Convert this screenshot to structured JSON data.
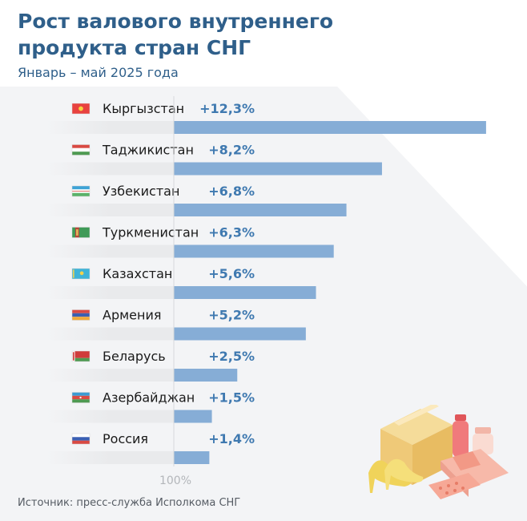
{
  "header": {
    "title": "Рост валового внутреннего продукта стран СНГ",
    "subtitle": "Январь – май 2025 года"
  },
  "footer": {
    "source": "Источник: пресс-служба Исполкома СНГ"
  },
  "colors": {
    "bar": "#86add6",
    "track": "#e9eaec",
    "value_text": "#3f79b0",
    "title": "#2f5f8a"
  },
  "chart_data": {
    "type": "bar",
    "orientation": "horizontal",
    "unit": "%",
    "reference_label": "100%",
    "categories": [
      "Кыргызстан",
      "Таджикистан",
      "Узбекистан",
      "Туркменистан",
      "Казахстан",
      "Армения",
      "Беларусь",
      "Азербайджан",
      "Россия"
    ],
    "values": [
      12.3,
      8.2,
      6.8,
      6.3,
      5.6,
      5.2,
      2.5,
      1.5,
      1.4
    ],
    "value_labels": [
      "+12,3%",
      "+8,2%",
      "+6,8%",
      "+6,3%",
      "+5,6%",
      "+5,2%",
      "+2,5%",
      "+1,5%",
      "+1,4%"
    ],
    "flag_icons": [
      "kyrgyzstan-flag-icon",
      "tajikistan-flag-icon",
      "uzbekistan-flag-icon",
      "turkmenistan-flag-icon",
      "kazakhstan-flag-icon",
      "armenia-flag-icon",
      "belarus-flag-icon",
      "azerbaijan-flag-icon",
      "russia-flag-icon"
    ]
  }
}
